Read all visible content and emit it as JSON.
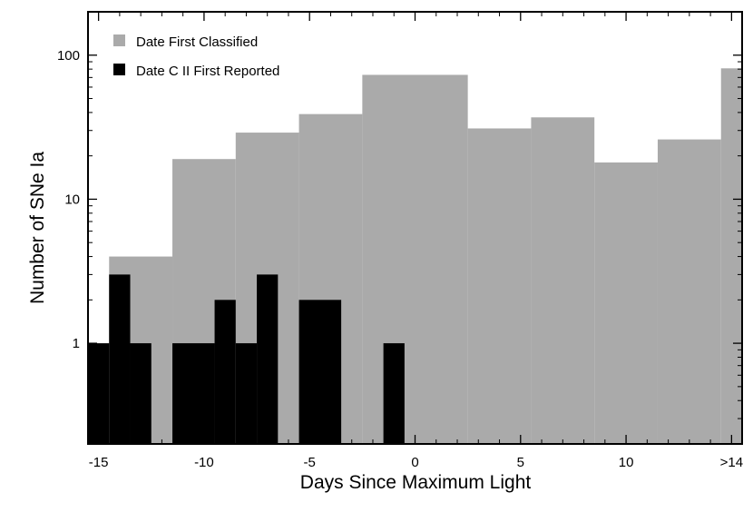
{
  "chart_data": {
    "type": "bar",
    "xlabel": "Days Since Maximum Light",
    "ylabel": "Number of SNe Ia",
    "xlim": [
      -15.5,
      15.5
    ],
    "ylim": [
      0.2,
      200
    ],
    "yscale": "log",
    "x_ticks": [
      {
        "value": -15,
        "label": "-15"
      },
      {
        "value": -10,
        "label": "-10"
      },
      {
        "value": -5,
        "label": "-5"
      },
      {
        "value": 0,
        "label": "0"
      },
      {
        "value": 5,
        "label": "5"
      },
      {
        "value": 10,
        "label": "10"
      },
      {
        "value": 15,
        "label": ">14"
      }
    ],
    "y_ticks": [
      {
        "value": 1,
        "label": "1"
      },
      {
        "value": 10,
        "label": "10"
      },
      {
        "value": 100,
        "label": "100"
      }
    ],
    "legend_position": "top-left",
    "series": [
      {
        "name": "Date First Classified",
        "color": "#aaaaaa",
        "bins": [
          {
            "x0": -14.5,
            "x1": -11.5,
            "y": 4
          },
          {
            "x0": -11.5,
            "x1": -8.5,
            "y": 19
          },
          {
            "x0": -8.5,
            "x1": -5.5,
            "y": 29
          },
          {
            "x0": -5.5,
            "x1": -2.5,
            "y": 39
          },
          {
            "x0": -2.5,
            "x1": 2.5,
            "y": 73
          },
          {
            "x0": 2.5,
            "x1": 5.5,
            "y": 31
          },
          {
            "x0": 5.5,
            "x1": 8.5,
            "y": 37
          },
          {
            "x0": 8.5,
            "x1": 11.5,
            "y": 18
          },
          {
            "x0": 11.5,
            "x1": 14.5,
            "y": 26
          },
          {
            "x0": 14.5,
            "x1": 15.5,
            "y": 81
          }
        ]
      },
      {
        "name": "Date C II First Reported",
        "color": "#000000",
        "bins": [
          {
            "x0": -15.5,
            "x1": -14.5,
            "y": 1
          },
          {
            "x0": -14.5,
            "x1": -13.5,
            "y": 3
          },
          {
            "x0": -13.5,
            "x1": -12.5,
            "y": 1
          },
          {
            "x0": -11.5,
            "x1": -9.5,
            "y": 1
          },
          {
            "x0": -9.5,
            "x1": -8.5,
            "y": 2
          },
          {
            "x0": -8.5,
            "x1": -7.5,
            "y": 1
          },
          {
            "x0": -7.5,
            "x1": -6.5,
            "y": 3
          },
          {
            "x0": -5.5,
            "x1": -3.5,
            "y": 2
          },
          {
            "x0": -1.5,
            "x1": -0.5,
            "y": 1
          }
        ]
      }
    ]
  }
}
